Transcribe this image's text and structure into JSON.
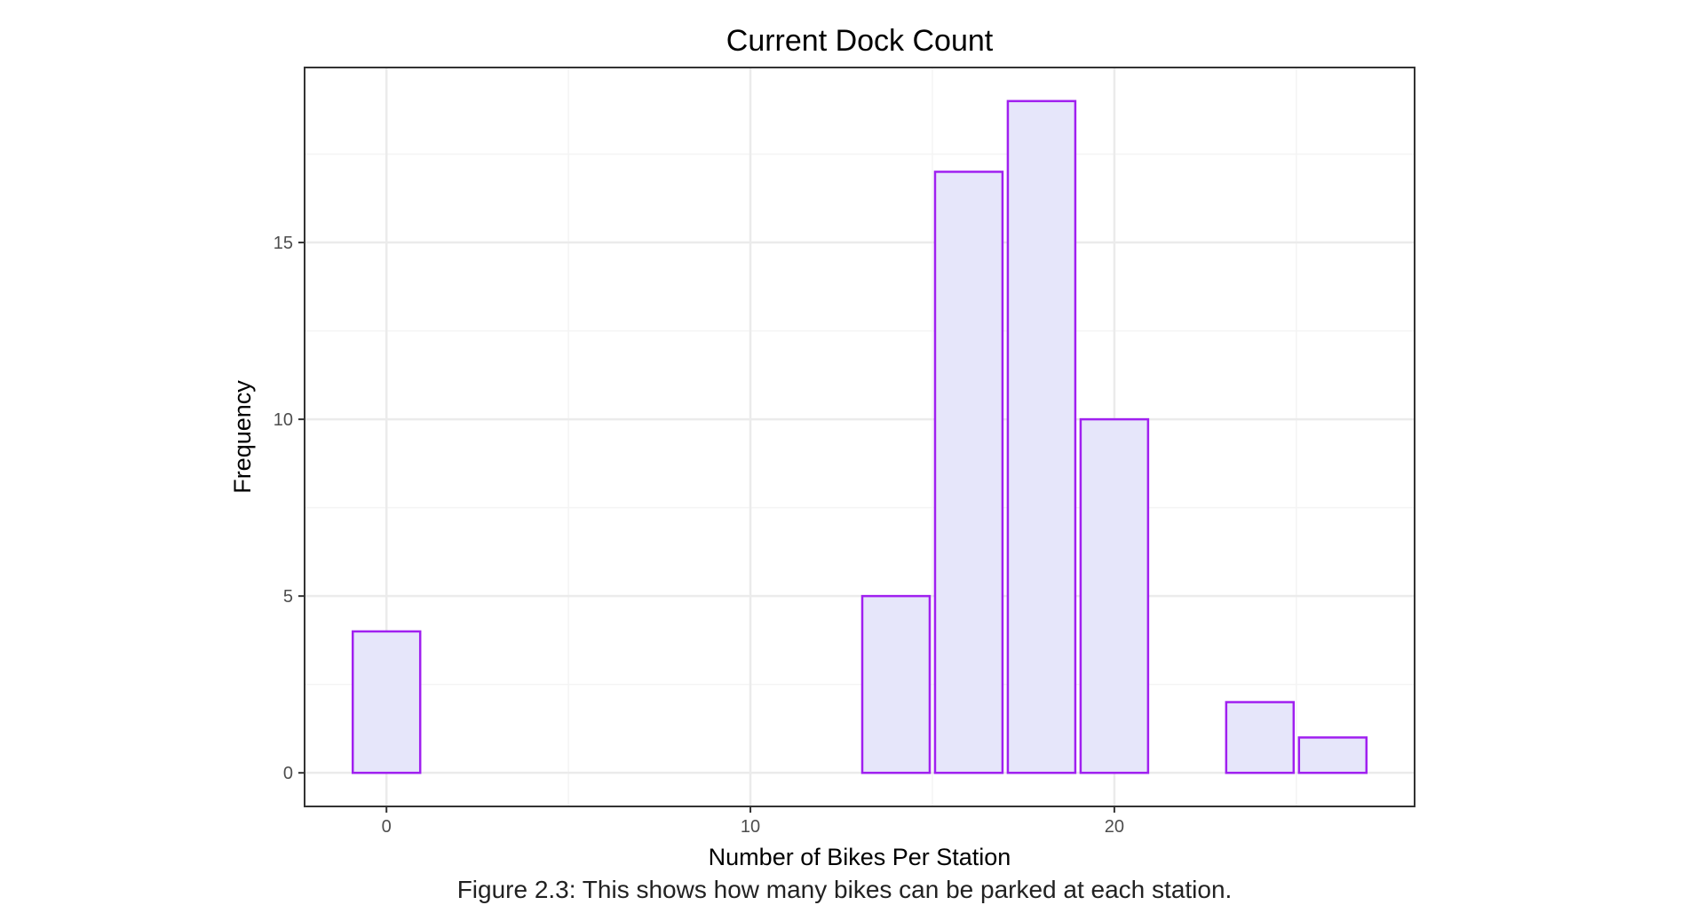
{
  "chart_data": {
    "type": "bar",
    "title": "Current Dock Count",
    "xlabel": "Number of Bikes Per Station",
    "ylabel": "Frequency",
    "bin_width": 2,
    "bins": [
      {
        "x": 0,
        "count": 4
      },
      {
        "x": 14,
        "count": 5
      },
      {
        "x": 16,
        "count": 17
      },
      {
        "x": 18,
        "count": 19
      },
      {
        "x": 20,
        "count": 10
      },
      {
        "x": 24,
        "count": 2
      },
      {
        "x": 26,
        "count": 1
      }
    ],
    "xlim": [
      -2.25,
      28.25
    ],
    "ylim": [
      -0.95,
      19.95
    ],
    "x_ticks": [
      0,
      10,
      20
    ],
    "y_ticks": [
      0,
      5,
      10,
      15
    ],
    "grid": true,
    "colors": {
      "bar_fill": "#e6e6fa",
      "bar_stroke": "#a020f0",
      "grid_major": "#ebebeb",
      "grid_minor": "#f4f4f4",
      "panel_border": "#333333"
    }
  },
  "caption": "Figure 2.3: This shows how many bikes can be parked at each station."
}
